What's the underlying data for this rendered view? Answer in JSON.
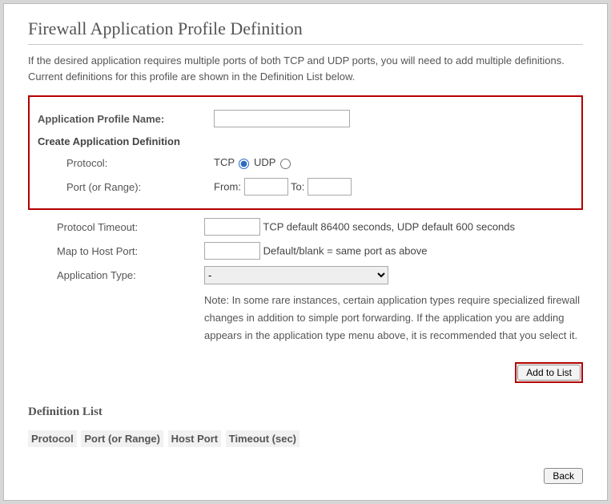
{
  "page": {
    "title": "Firewall Application Profile Definition",
    "intro": "If the desired application requires multiple ports of both TCP and UDP ports, you will need to add multiple definitions. Current definitions for this profile are shown in the Definition List below."
  },
  "form": {
    "profile_name": {
      "label": "Application Profile Name:",
      "value": ""
    },
    "create_heading": "Create Application Definition",
    "protocol": {
      "label": "Protocol:",
      "tcp_label": "TCP",
      "udp_label": "UDP",
      "tcp_checked": true,
      "udp_checked": false
    },
    "port_range": {
      "label": "Port (or Range):",
      "from_label": "From:",
      "to_label": "To:",
      "from_value": "",
      "to_value": ""
    },
    "timeout": {
      "label": "Protocol Timeout:",
      "value": "",
      "hint": "TCP default 86400 seconds, UDP default 600 seconds"
    },
    "map_host_port": {
      "label": "Map to Host Port:",
      "value": "",
      "hint": "Default/blank = same port as above"
    },
    "application_type": {
      "label": "Application Type:",
      "selected": "-",
      "options": [
        "-"
      ]
    },
    "note": "Note: In some rare instances, certain application types require specialized firewall changes in addition to simple port forwarding. If the application you are adding appears in the application type menu above, it is recommended that you select it."
  },
  "buttons": {
    "add_to_list": "Add to List",
    "back": "Back"
  },
  "definition_list": {
    "heading": "Definition List",
    "columns": {
      "protocol": "Protocol",
      "port_range": "Port (or Range)",
      "host_port": "Host Port",
      "timeout": "Timeout (sec)"
    }
  },
  "colors": {
    "highlight_border": "#b40000",
    "text": "#555555",
    "panel_bg": "#ffffff",
    "page_bg": "#d7d7d7"
  }
}
